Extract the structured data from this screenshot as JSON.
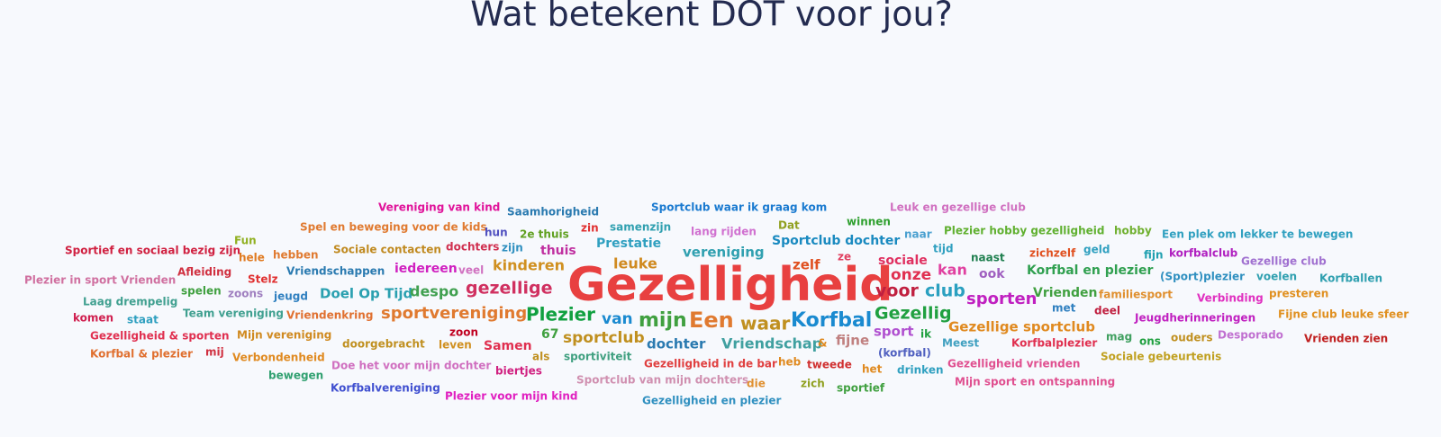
{
  "title": "Wat betekent DOT voor jou?",
  "words": [
    "Vereniging van kind",
    "Saamhorigheid",
    "Sportclub waar ik graag kom",
    "Leuk en gezellige club",
    "Spel en beweging voor de kids",
    "hun",
    "zin",
    "samenzijn",
    "lang rijden",
    "Dat",
    "winnen",
    "Plezier hobby gezelligheid",
    "hobby",
    "Een plek om lekker te bewegen",
    "2e thuis",
    "Fun",
    "Sportclub dochter",
    "naar",
    "Prestatie",
    "Sportief en sociaal bezig zijn",
    "hele",
    "hebben",
    "Sociale contacten",
    "dochters",
    "zijn",
    "thuis",
    "vereniging",
    "tijd",
    "zichzelf",
    "geld",
    "fijn",
    "korfbalclub",
    "Gezellige club",
    "ze",
    "sociale",
    "naast",
    "kinderen",
    "leuke",
    "zelf",
    "Plezier in sport Vrienden",
    "Afleiding",
    "Stelz",
    "Vriendschappen",
    "iedereen",
    "veel",
    "onze",
    "kan",
    "ook",
    "Korfbal en plezier",
    "(Sport)plezier",
    "voelen",
    "Korfballen",
    "Gezelligheid",
    "gezellige",
    "voor",
    "club",
    "spelen",
    "zoons",
    "jeugd",
    "Doel Op Tijd",
    "despo",
    "Vrienden",
    "familiesport",
    "Verbinding",
    "presteren",
    "sporten",
    "Laag drempelig",
    "met",
    "Team vereniging",
    "Vriendenkring",
    "sportvereniging",
    "Plezier",
    "deel",
    "komen",
    "staat",
    "van",
    "mijn",
    "Een",
    "waar",
    "Korfbal",
    "Gezellig",
    "Jeugdherinneringen",
    "Fijne club leuke sfeer",
    "Gezellige sportclub",
    "zoon",
    "ik",
    "sport",
    "Gezelligheid & sporten",
    "Mijn vereniging",
    "67",
    "sportclub",
    "Desporado",
    "mag",
    "ouders",
    "Vrienden zien",
    "ons",
    "doorgebracht",
    "leven",
    "Samen",
    "dochter",
    "Vriendschap",
    "&",
    "fijne",
    "Meest",
    "Korfbalplezier",
    "Korfbal & plezier",
    "mij",
    "(korfbal)",
    "Verbondenheid",
    "als",
    "sportiviteit",
    "Sociale gebeurtenis",
    "Doe het voor mijn dochter",
    "Gezelligheid in de bar",
    "heb",
    "tweede",
    "het",
    "drinken",
    "Gezelligheid vrienden",
    "biertjes",
    "bewegen",
    "Sportclub van mijn dochters",
    "die",
    "zich",
    "sportief",
    "Mijn sport en ontspanning",
    "Korfbalvereniging",
    "Plezier voor mijn kind",
    "Gezelligheid en plezier"
  ]
}
